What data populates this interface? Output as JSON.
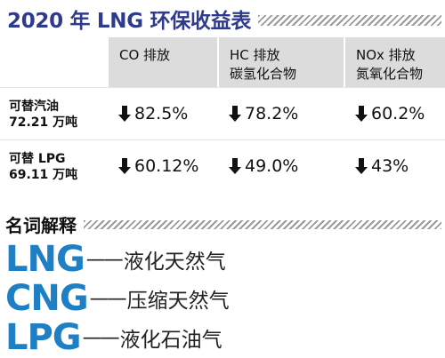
{
  "title": "2020 年 LNG 环保收益表",
  "table": {
    "columns": [
      {
        "line1": "CO 排放",
        "line2": ""
      },
      {
        "line1": "HC 排放",
        "line2": "碳氢化合物"
      },
      {
        "line1": "NOx 排放",
        "line2": "氮氧化合物"
      }
    ],
    "rows": [
      {
        "line1": "可替汽油",
        "line2": "72.21 万吨",
        "values": [
          "82.5%",
          "78.2%",
          "60.2%"
        ]
      },
      {
        "line1": "可替 LPG",
        "line2": "69.11 万吨",
        "values": [
          "60.12%",
          "49.0%",
          "43%"
        ]
      }
    ],
    "arrow_icon": "down-arrow-icon"
  },
  "glossary": {
    "title": "名词解释",
    "items": [
      {
        "abbr": "LNG",
        "dash": "——",
        "meaning": "液化天然气"
      },
      {
        "abbr": "CNG",
        "dash": "——",
        "meaning": "压缩天然气"
      },
      {
        "abbr": "LPG",
        "dash": "——",
        "meaning": "液化石油气"
      }
    ]
  },
  "colors": {
    "title": "#2e3a8c",
    "abbreviation": "#1f7fc4",
    "header_fill": "#dcdcdc",
    "hatch": "#9a9a9a"
  }
}
